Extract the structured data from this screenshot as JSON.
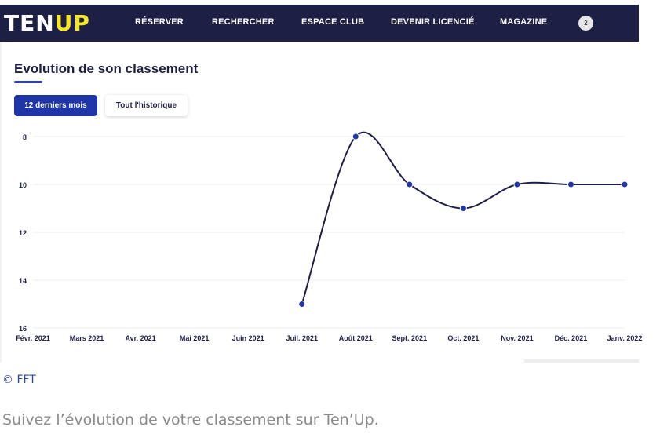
{
  "nav": {
    "logo_main": "TEN",
    "logo_accent": "UP",
    "items": [
      "RÉSERVER",
      "RECHERCHER",
      "ESPACE CLUB",
      "DEVENIR LICENCIÉ",
      "MAGAZINE"
    ],
    "avatar_text": "2",
    "bg_color": "#1d1f44",
    "logo_accent_color": "#f5e62a"
  },
  "page": {
    "title": "Evolution de son classement",
    "tabs": [
      {
        "label": "12 derniers mois",
        "active": true
      },
      {
        "label": "Tout l'historique",
        "active": false
      }
    ],
    "accent_color": "#2035a8"
  },
  "chart_data": {
    "type": "line",
    "title": "",
    "xlabel": "",
    "ylabel": "",
    "categories": [
      "Févr. 2021",
      "Mars 2021",
      "Avr. 2021",
      "Mai 2021",
      "Juin 2021",
      "Juil. 2021",
      "Août 2021",
      "Sept. 2021",
      "Oct. 2021",
      "Nov. 2021",
      "Déc. 2021",
      "Janv. 2022"
    ],
    "series": [
      {
        "values": [
          null,
          null,
          null,
          null,
          null,
          15,
          8,
          10,
          11,
          10,
          10,
          10
        ]
      }
    ],
    "yticks": [
      8,
      10,
      12,
      14,
      16
    ],
    "ylim": [
      8,
      16
    ],
    "y_inverted": true,
    "grid": true,
    "line_color": "#1d1f44",
    "marker_color": "#2035a8"
  },
  "footer": {
    "credit": "© FFT",
    "caption": "Suivez l’évolution de votre classement sur Ten’Up."
  }
}
